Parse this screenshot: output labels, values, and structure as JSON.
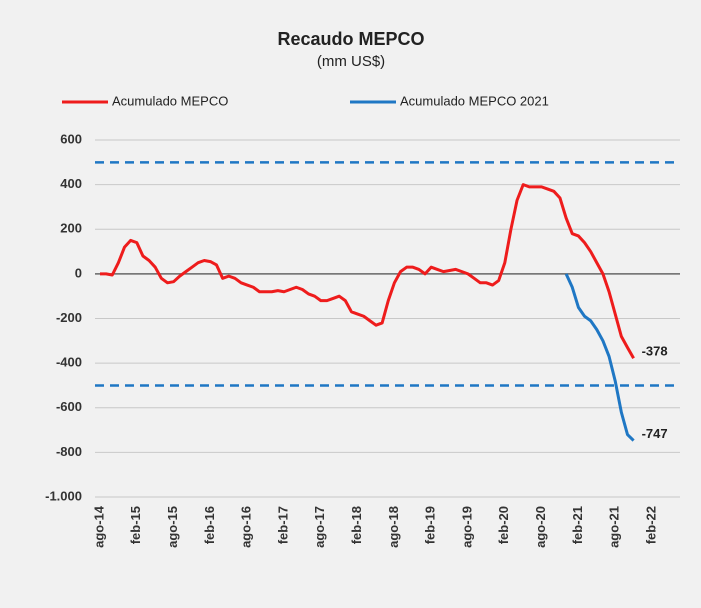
{
  "chart_data": {
    "type": "line",
    "title": "Recaudo MEPCO",
    "subtitle": "(mm US$)",
    "categories": [
      "ago-14",
      null,
      null,
      null,
      null,
      null,
      "feb-15",
      null,
      null,
      null,
      null,
      null,
      "ago-15",
      null,
      null,
      null,
      null,
      null,
      "feb-16",
      null,
      null,
      null,
      null,
      null,
      "ago-16",
      null,
      null,
      null,
      null,
      null,
      "feb-17",
      null,
      null,
      null,
      null,
      null,
      "ago-17",
      null,
      null,
      null,
      null,
      null,
      "feb-18",
      null,
      null,
      null,
      null,
      null,
      "ago-18",
      null,
      null,
      null,
      null,
      null,
      "feb-19",
      null,
      null,
      null,
      null,
      null,
      "ago-19",
      null,
      null,
      null,
      null,
      null,
      "feb-20",
      null,
      null,
      null,
      null,
      null,
      "ago-20",
      null,
      null,
      null,
      null,
      null,
      "feb-21",
      null,
      null,
      null,
      null,
      null,
      "ago-21",
      null,
      null,
      null,
      null,
      null,
      "feb-22"
    ],
    "series": [
      {
        "name": "Acumulado MEPCO",
        "color": "#ee1c1c",
        "values": [
          0,
          0,
          -5,
          50,
          120,
          150,
          140,
          80,
          60,
          30,
          -20,
          -40,
          -35,
          -10,
          10,
          30,
          50,
          60,
          55,
          40,
          -20,
          -10,
          -20,
          -40,
          -50,
          -60,
          -80,
          -80,
          -80,
          -75,
          -80,
          -70,
          -60,
          -70,
          -90,
          -100,
          -120,
          -120,
          -110,
          -100,
          -120,
          -170,
          -180,
          -190,
          -210,
          -230,
          -220,
          -120,
          -40,
          10,
          30,
          30,
          20,
          0,
          30,
          20,
          10,
          15,
          20,
          10,
          0,
          -20,
          -40,
          -40,
          -50,
          -30,
          50,
          200,
          330,
          400,
          390,
          390,
          390,
          380,
          370,
          340,
          250,
          180,
          170,
          140,
          100,
          50,
          0,
          -80,
          -180,
          -280,
          -330,
          -378,
          null,
          null,
          null
        ],
        "labeled_index": 87
      },
      {
        "name": "Acumulado MEPCO 2021",
        "color": "#1f77c4",
        "values": [
          null,
          null,
          null,
          null,
          null,
          null,
          null,
          null,
          null,
          null,
          null,
          null,
          null,
          null,
          null,
          null,
          null,
          null,
          null,
          null,
          null,
          null,
          null,
          null,
          null,
          null,
          null,
          null,
          null,
          null,
          null,
          null,
          null,
          null,
          null,
          null,
          null,
          null,
          null,
          null,
          null,
          null,
          null,
          null,
          null,
          null,
          null,
          null,
          null,
          null,
          null,
          null,
          null,
          null,
          null,
          null,
          null,
          null,
          null,
          null,
          null,
          null,
          null,
          null,
          null,
          null,
          null,
          null,
          null,
          null,
          null,
          null,
          null,
          null,
          null,
          null,
          0,
          -60,
          -150,
          -190,
          -210,
          -250,
          -300,
          -370,
          -480,
          -620,
          -720,
          -747,
          null,
          null,
          null
        ],
        "labeled_index": 87
      }
    ],
    "reference_lines": [
      500,
      -500
    ],
    "reference_color": "#1f77c4",
    "ylim": [
      -1000,
      600
    ],
    "yticks": [
      600,
      400,
      200,
      0,
      -200,
      -400,
      -600,
      -800,
      {
        "value": -1000,
        "label": "-1.000"
      }
    ],
    "grid": true
  }
}
